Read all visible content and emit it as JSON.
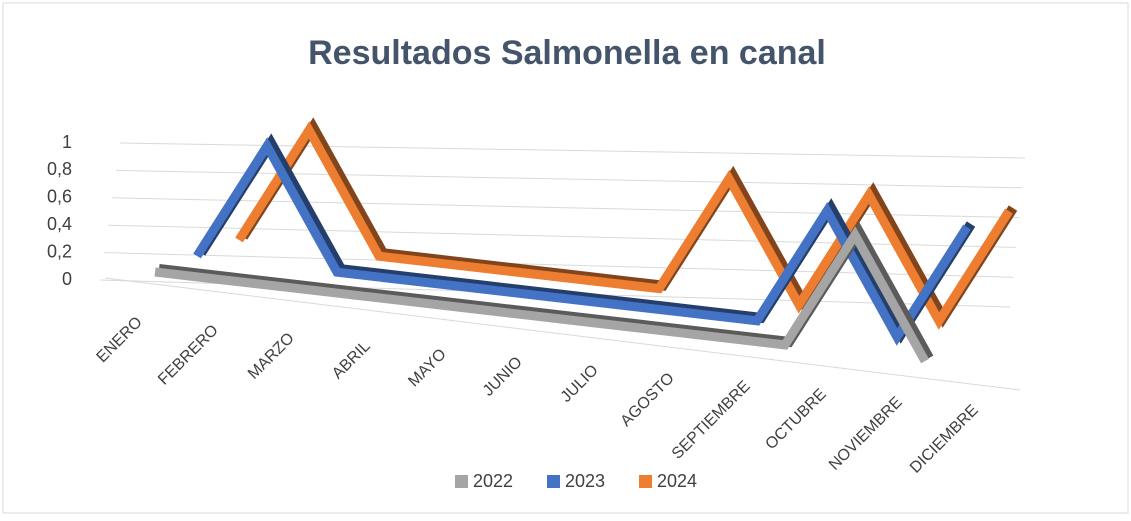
{
  "chart_data": {
    "type": "line3d",
    "title": "Resultados Salmonella en canal",
    "categories": [
      "ENERO",
      "FEBRERO",
      "MARZO",
      "ABRIL",
      "MAYO",
      "JUNIO",
      "JULIO",
      "AGOSTO",
      "SEPTIEMBRE",
      "OCTUBRE",
      "NOVIEMBRE",
      "DICIEMBRE"
    ],
    "series": [
      {
        "name": "2022",
        "color": "#a5a5a5",
        "values": [
          0,
          0,
          0,
          0,
          0,
          0,
          0,
          0,
          0,
          0,
          1,
          0
        ]
      },
      {
        "name": "2023",
        "color": "#4472c4",
        "values": [
          0,
          1,
          0,
          0,
          0,
          0,
          0,
          0,
          0,
          1,
          0,
          1
        ]
      },
      {
        "name": "2024",
        "color": "#ed7d31",
        "values": [
          0,
          1,
          0,
          0,
          0,
          0,
          0,
          1,
          0,
          1,
          0,
          1
        ]
      }
    ],
    "ylim": [
      0,
      1
    ],
    "yticks": [
      0,
      {
        "value": 0.2,
        "label": "0,2"
      },
      {
        "value": 0.4,
        "label": "0,4"
      },
      {
        "value": 0.6,
        "label": "0,6"
      },
      {
        "value": 0.8,
        "label": "0,8"
      },
      1
    ],
    "grid": true,
    "legend": "bottom"
  }
}
